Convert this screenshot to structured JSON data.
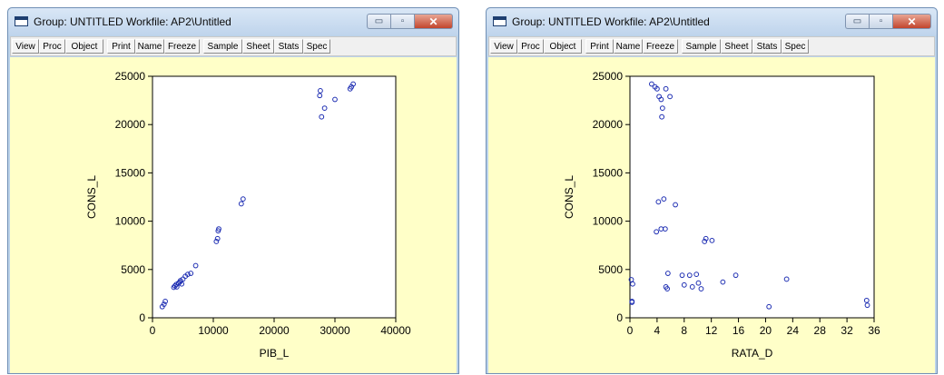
{
  "windows": [
    {
      "title": "Group: UNTITLED   Workfile: AP2\\Untitled",
      "toolbar": [
        "View",
        "Proc",
        "Object",
        "Print",
        "Name",
        "Freeze",
        "Sample",
        "Sheet",
        "Stats",
        "Spec"
      ]
    },
    {
      "title": "Group: UNTITLED   Workfile: AP2\\Untitled",
      "toolbar": [
        "View",
        "Proc",
        "Object",
        "Print",
        "Name",
        "Freeze",
        "Sample",
        "Sheet",
        "Stats",
        "Spec"
      ]
    }
  ],
  "window_buttons": {
    "minimize": "▭",
    "maximize": "▫",
    "close": "✕"
  },
  "colors": {
    "marker": "#1f2fb3",
    "plot_background": "#ffffc8",
    "frame": "#bcd3ea"
  },
  "chart_data": [
    {
      "type": "scatter",
      "xlabel": "PIB_L",
      "ylabel": "CONS_L",
      "xlim": [
        0,
        40000
      ],
      "ylim": [
        0,
        25000
      ],
      "xticks": [
        0,
        10000,
        20000,
        30000,
        40000
      ],
      "yticks": [
        0,
        5000,
        10000,
        15000,
        20000,
        25000
      ],
      "x": [
        1600,
        1900,
        2100,
        3500,
        3700,
        3900,
        4000,
        4300,
        4500,
        4600,
        4800,
        5000,
        5400,
        5800,
        6300,
        7100,
        10500,
        10700,
        10800,
        10900,
        14600,
        14900,
        27500,
        27600,
        27800,
        28300,
        30000,
        32500,
        32700,
        33000
      ],
      "y": [
        1150,
        1400,
        1700,
        3150,
        3300,
        3450,
        3200,
        3600,
        3700,
        3850,
        3500,
        4000,
        4300,
        4500,
        4600,
        5400,
        7900,
        8200,
        9000,
        9200,
        11800,
        12300,
        23000,
        23500,
        20800,
        21700,
        22600,
        23700,
        23900,
        24200
      ]
    },
    {
      "type": "scatter",
      "xlabel": "RATA_D",
      "ylabel": "CONS_L",
      "xlim": [
        0,
        36
      ],
      "ylim": [
        0,
        25000
      ],
      "xticks": [
        0,
        4,
        8,
        12,
        16,
        20,
        24,
        28,
        32,
        36
      ],
      "yticks": [
        0,
        5000,
        10000,
        15000,
        20000,
        25000
      ],
      "x": [
        0.3,
        0.3,
        0.4,
        0.2,
        3.2,
        3.7,
        4.0,
        4.3,
        4.6,
        4.8,
        5.3,
        5.9,
        4.7,
        5.0,
        6.7,
        4.2,
        4.6,
        5.2,
        3.9,
        5.6,
        5.3,
        5.5,
        7.7,
        8.0,
        8.8,
        9.2,
        9.8,
        10.1,
        10.5,
        11.0,
        11.2,
        12.1,
        13.7,
        15.6,
        20.5,
        23.1,
        34.9,
        35.0
      ],
      "y": [
        1600,
        1700,
        3500,
        3950,
        24200,
        23900,
        23700,
        22900,
        22600,
        21700,
        23700,
        22900,
        20800,
        12300,
        11700,
        12000,
        9200,
        9200,
        8900,
        4600,
        3200,
        3000,
        4400,
        3400,
        4400,
        3200,
        4500,
        3600,
        3000,
        7900,
        8200,
        8000,
        3700,
        4400,
        1150,
        4000,
        1800,
        1300
      ]
    }
  ]
}
